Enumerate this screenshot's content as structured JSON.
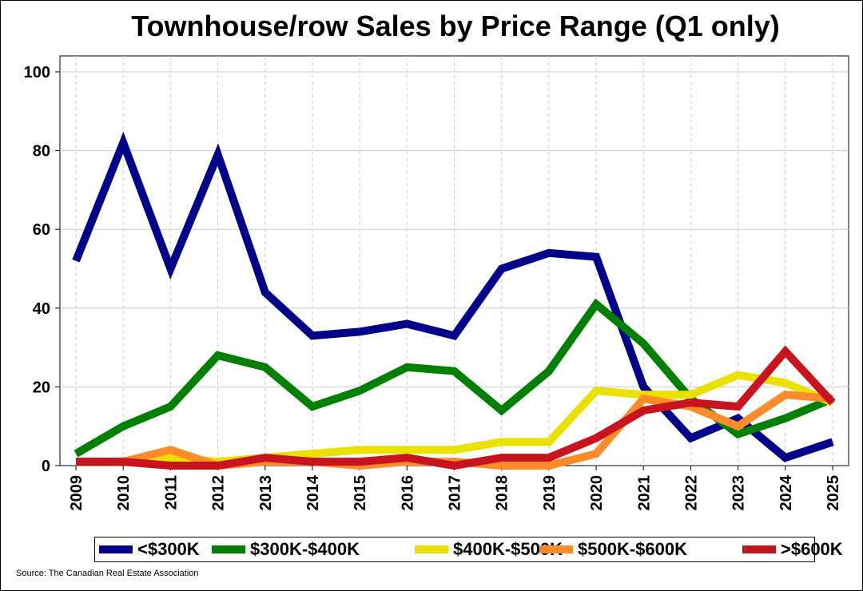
{
  "chart_data": {
    "type": "line",
    "title": "Townhouse/row Sales by Price Range (Q1 only)",
    "x": [
      "2009",
      "2010",
      "2011",
      "2012",
      "2013",
      "2014",
      "2015",
      "2016",
      "2017",
      "2018",
      "2019",
      "2020",
      "2021",
      "2022",
      "2023",
      "2024",
      "2025"
    ],
    "ylim": [
      0,
      100
    ],
    "yticks": [
      0,
      20,
      40,
      60,
      80,
      100
    ],
    "grid": true,
    "legend_position": "bottom",
    "series": [
      {
        "name": "<$300K",
        "color": "#00008b",
        "values": [
          52,
          82,
          50,
          79,
          44,
          33,
          34,
          36,
          33,
          50,
          54,
          53,
          20,
          7,
          12,
          2,
          6
        ]
      },
      {
        "name": "$300K-$400K",
        "color": "#008000",
        "values": [
          3,
          10,
          15,
          28,
          25,
          15,
          19,
          25,
          24,
          14,
          24,
          41,
          31,
          17,
          8,
          12,
          17
        ]
      },
      {
        "name": "$400K-$500K",
        "color": "#ebe100",
        "values": [
          1,
          1,
          2,
          1,
          2,
          3,
          4,
          4,
          4,
          6,
          6,
          19,
          18,
          18,
          23,
          21,
          16
        ]
      },
      {
        "name": "$500K-$600K",
        "color": "#ff8c2a",
        "values": [
          1,
          1,
          4,
          0,
          1,
          1,
          0,
          1,
          1,
          0,
          0,
          3,
          17,
          15,
          10,
          18,
          17
        ]
      },
      {
        "name": ">$600K",
        "color": "#c8141e",
        "values": [
          1,
          1,
          0,
          0,
          2,
          1,
          1,
          2,
          0,
          2,
          2,
          7,
          14,
          16,
          15,
          29,
          16
        ]
      }
    ]
  },
  "source": "Source: The Canadian Real Estate Association"
}
